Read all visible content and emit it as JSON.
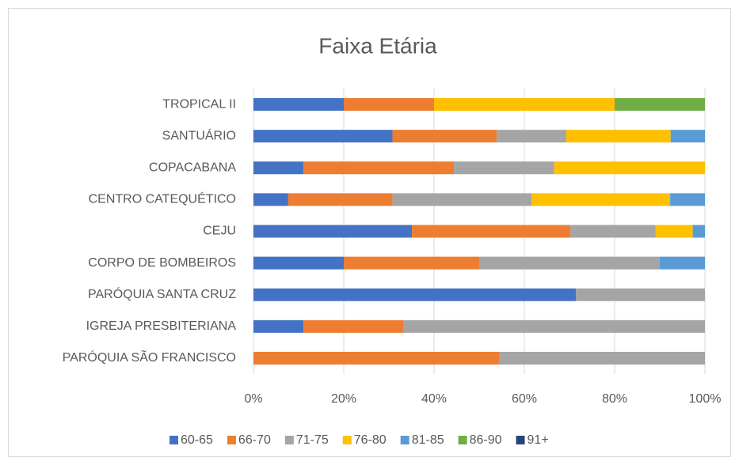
{
  "chart_data": {
    "type": "bar_stacked_100_horizontal",
    "title": "Faixa Etária",
    "categories": [
      "TROPICAL II",
      "SANTUÁRIO",
      "COPACABANA",
      "CENTRO CATEQUÉTICO",
      "CEJU",
      "CORPO DE BOMBEIROS",
      "PARÓQUIA SANTA CRUZ",
      "IGREJA PRESBITERIANA",
      "PARÓQUIA SÃO FRANCISCO"
    ],
    "series": [
      {
        "name": "60-65",
        "color": "#4472c4",
        "values": [
          20,
          30.8,
          11.1,
          7.7,
          35.1,
          20,
          71.4,
          11.1,
          0
        ]
      },
      {
        "name": "66-70",
        "color": "#ed7d31",
        "values": [
          20,
          23.1,
          33.3,
          23.1,
          35.1,
          30,
          0,
          22.2,
          54.5
        ]
      },
      {
        "name": "71-75",
        "color": "#a5a5a5",
        "values": [
          0,
          15.4,
          22.2,
          30.8,
          18.9,
          40,
          28.6,
          66.7,
          45.5
        ]
      },
      {
        "name": "76-80",
        "color": "#ffc000",
        "values": [
          40,
          23.1,
          33.4,
          30.7,
          8.2,
          0,
          0,
          0,
          0
        ]
      },
      {
        "name": "81-85",
        "color": "#5b9bd5",
        "values": [
          0,
          7.6,
          0,
          7.7,
          2.7,
          10,
          0,
          0,
          0
        ]
      },
      {
        "name": "86-90",
        "color": "#70ad47",
        "values": [
          20,
          0,
          0,
          0,
          0,
          0,
          0,
          0,
          0
        ]
      },
      {
        "name": "91+",
        "color": "#264478",
        "values": [
          0,
          0,
          0,
          0,
          0,
          0,
          0,
          0,
          0
        ]
      }
    ],
    "xlim": [
      0,
      100
    ],
    "xticks": [
      {
        "value": 0,
        "label": "0%"
      },
      {
        "value": 20,
        "label": "20%"
      },
      {
        "value": 40,
        "label": "40%"
      },
      {
        "value": 60,
        "label": "60%"
      },
      {
        "value": 80,
        "label": "80%"
      },
      {
        "value": 100,
        "label": "100%"
      }
    ],
    "grid": true,
    "legend": "bottom"
  }
}
